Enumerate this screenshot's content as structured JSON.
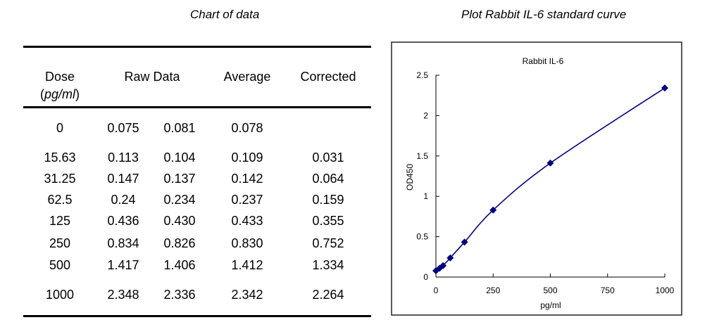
{
  "table_title": "Chart of data",
  "plot_title": "Plot Rabbit IL-6 standard curve",
  "table": {
    "headers": {
      "dose": "Dose",
      "dose_unit": "pg/ml",
      "raw": "Raw Data",
      "average": "Average",
      "corrected": "Corrected"
    },
    "rows": [
      {
        "dose": "0",
        "raw1": "0.075",
        "raw2": "0.081",
        "average": "0.078",
        "corrected": ""
      },
      {
        "dose": "15.63",
        "raw1": "0.113",
        "raw2": "0.104",
        "average": "0.109",
        "corrected": "0.031"
      },
      {
        "dose": "31.25",
        "raw1": "0.147",
        "raw2": "0.137",
        "average": "0.142",
        "corrected": "0.064"
      },
      {
        "dose": "62.5",
        "raw1": "0.24",
        "raw2": "0.234",
        "average": "0.237",
        "corrected": "0.159"
      },
      {
        "dose": "125",
        "raw1": "0.436",
        "raw2": "0.430",
        "average": "0.433",
        "corrected": "0.355"
      },
      {
        "dose": "250",
        "raw1": "0.834",
        "raw2": "0.826",
        "average": "0.830",
        "corrected": "0.752"
      },
      {
        "dose": "500",
        "raw1": "1.417",
        "raw2": "1.406",
        "average": "1.412",
        "corrected": "1.334"
      },
      {
        "dose": "1000",
        "raw1": "2.348",
        "raw2": "2.336",
        "average": "2.342",
        "corrected": "2.264"
      }
    ]
  },
  "chart_data": {
    "type": "line",
    "title": "Rabbit IL-6",
    "xlabel": "pg/ml",
    "ylabel": "OD450",
    "xlim": [
      0,
      1000
    ],
    "ylim": [
      0,
      2.5
    ],
    "xticks": [
      "0",
      "250",
      "500",
      "750",
      "1000"
    ],
    "yticks": [
      "0",
      "0.5",
      "1",
      "1.5",
      "2",
      "2.5"
    ],
    "x": [
      0,
      15.63,
      31.25,
      62.5,
      125,
      250,
      500,
      1000
    ],
    "y": [
      0.078,
      0.109,
      0.142,
      0.237,
      0.433,
      0.83,
      1.412,
      2.342
    ],
    "marker": "diamond",
    "smooth": true,
    "grid": false,
    "color": "#000080"
  }
}
